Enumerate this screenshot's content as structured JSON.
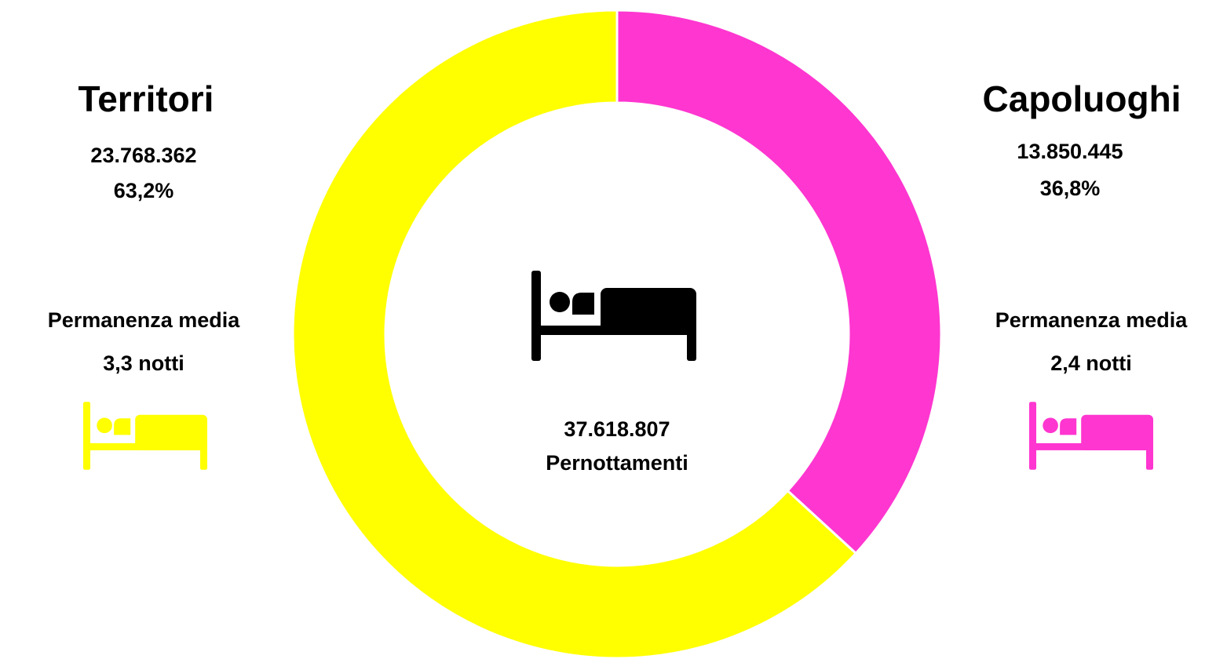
{
  "chart_data": {
    "type": "pie",
    "categories": [
      "Territori",
      "Capoluoghi"
    ],
    "values": [
      23768362,
      13850445
    ],
    "value_labels": [
      "23.768.362",
      "13.850.445"
    ],
    "percentages": [
      63.2,
      36.8
    ],
    "percentage_labels": [
      "63,2%",
      "36,8%"
    ],
    "colors": [
      "#ffff00",
      "#ff36d0"
    ],
    "total": 37618807,
    "total_label": "37.618.807",
    "center_label": "Pernottamenti",
    "stay_title": "Permanenza media",
    "stays": [
      3.3,
      2.4
    ],
    "stay_labels": [
      "3,3 notti",
      "2,4 notti"
    ]
  }
}
